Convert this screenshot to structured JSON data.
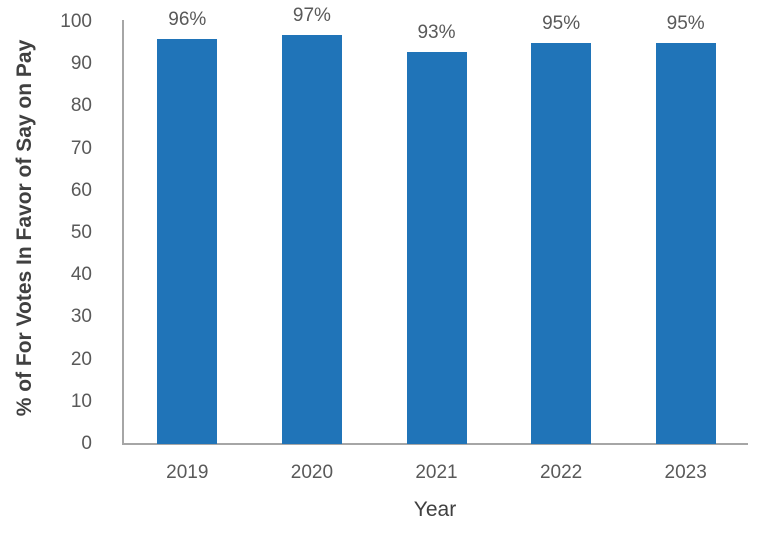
{
  "chart_data": {
    "type": "bar",
    "title": "",
    "categories": [
      "2019",
      "2020",
      "2021",
      "2022",
      "2023"
    ],
    "values": [
      96,
      97,
      93,
      95,
      95
    ],
    "data_labels": [
      "96%",
      "97%",
      "93%",
      "95%",
      "95%"
    ],
    "xlabel": "Year",
    "ylabel": "% of For Votes In Favor of Say on Pay",
    "ylim": [
      0,
      100
    ],
    "yticks": [
      0,
      10,
      20,
      30,
      40,
      50,
      60,
      70,
      80,
      90,
      100
    ],
    "grid": false,
    "legend": "none",
    "bar_color": "#2074B8",
    "axis_line_color": "#A6A6A6",
    "tick_label_color": "#595959",
    "axis_title_color": "#404040"
  }
}
